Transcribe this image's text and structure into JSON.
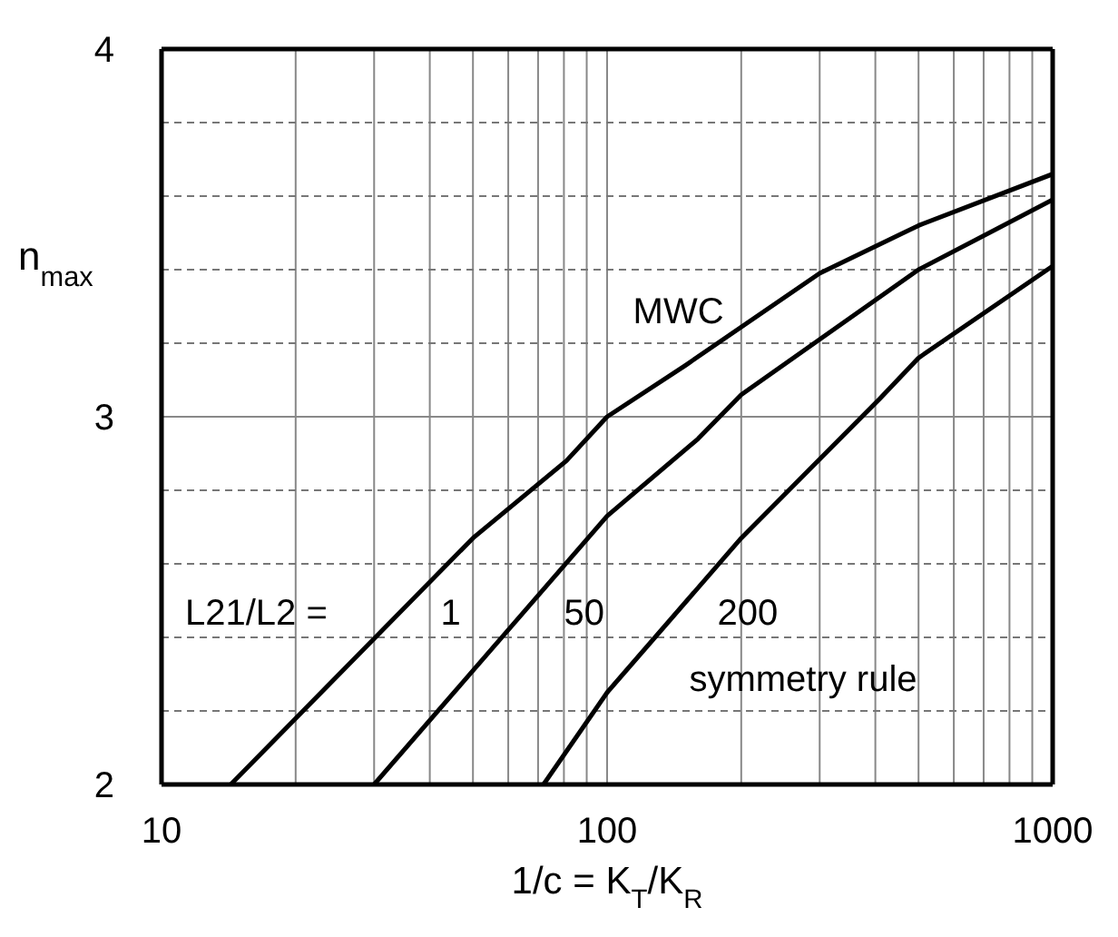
{
  "chart_data": {
    "type": "line",
    "xlabel": "1/c = K$_{T}$/K$_{R}$",
    "ylabel": "n$_{max}$",
    "legend_title": "L21/L2 =",
    "log": "x",
    "grid": true,
    "line_style": "solid",
    "marker": "none",
    "xlim": [
      10,
      1000
    ],
    "xticks": [
      10,
      {
        "value": 20,
        "label": null
      },
      {
        "value": 30,
        "label": null
      },
      {
        "value": 40,
        "label": null
      },
      {
        "value": 50,
        "label": null
      },
      {
        "value": 60,
        "label": null
      },
      {
        "value": 70,
        "label": null
      },
      {
        "value": 80,
        "label": null
      },
      {
        "value": 90,
        "label": null
      },
      100,
      {
        "value": 200,
        "label": null
      },
      {
        "value": 300,
        "label": null
      },
      {
        "value": 400,
        "label": null
      },
      {
        "value": 500,
        "label": null
      },
      {
        "value": 600,
        "label": null
      },
      {
        "value": 700,
        "label": null
      },
      {
        "value": 800,
        "label": null
      },
      {
        "value": 900,
        "label": null
      },
      1000
    ],
    "ylim": [
      2,
      4
    ],
    "yticks": [
      2,
      {
        "value": 2.2,
        "label": null
      },
      {
        "value": 2.4,
        "label": null
      },
      {
        "value": 2.6,
        "label": null
      },
      {
        "value": 2.8,
        "label": null
      },
      3,
      {
        "value": 3.2,
        "label": null
      },
      {
        "value": 3.4,
        "label": null
      },
      {
        "value": 3.6,
        "label": null
      },
      {
        "value": 3.8,
        "label": null
      },
      4
    ],
    "series": [
      {
        "name": "1",
        "color": "#000000",
        "x": [
          14.3,
          50,
          81,
          100,
          150,
          300,
          500,
          1000
        ],
        "values": [
          2,
          2.67,
          2.88,
          3.0,
          3.14,
          3.39,
          3.52,
          3.66
        ]
      },
      {
        "name": "50",
        "color": "#000000",
        "x": [
          30,
          100,
          160,
          200,
          500,
          1000
        ],
        "values": [
          2,
          2.73,
          2.94,
          3.06,
          3.4,
          3.59
        ]
      },
      {
        "name": "200",
        "color": "#000000",
        "x": [
          72,
          100,
          200,
          410,
          500,
          1000
        ],
        "values": [
          2,
          2.25,
          2.67,
          3.05,
          3.16,
          3.41
        ]
      }
    ],
    "annotations": [
      "MWC",
      "symmetry rule"
    ]
  }
}
